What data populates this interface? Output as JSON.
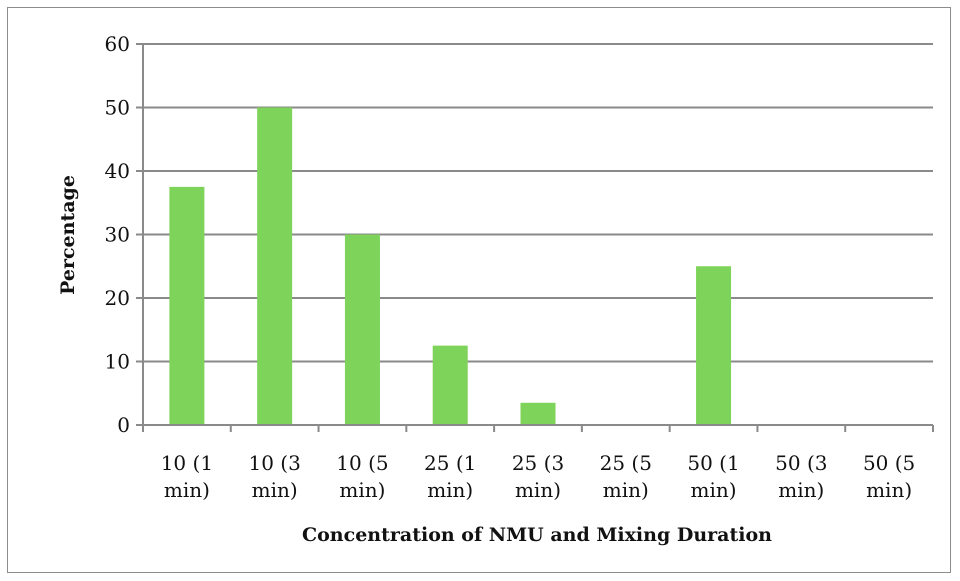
{
  "chart_data": {
    "type": "bar",
    "title": "",
    "xlabel": "Concentration of NMU and Mixing Duration",
    "ylabel": "Percentage",
    "categories": [
      [
        "10 (1",
        "min)"
      ],
      [
        "10 (3",
        "min)"
      ],
      [
        "10 (5",
        "min)"
      ],
      [
        "25 (1",
        "min)"
      ],
      [
        "25 (3",
        "min)"
      ],
      [
        "25 (5",
        "min)"
      ],
      [
        "50 (1",
        "min)"
      ],
      [
        "50 (3",
        "min)"
      ],
      [
        "50 (5",
        "min)"
      ]
    ],
    "values": [
      37.5,
      50,
      30,
      12.5,
      3.5,
      0,
      25,
      0,
      0
    ],
    "ylim": [
      0,
      60
    ],
    "yticks": [
      "0",
      "10",
      "20",
      "30",
      "40",
      "50",
      "60"
    ],
    "grid": true,
    "legend": "none",
    "bar_color": "#7ed35a",
    "grid_color": "#8a8a8a"
  }
}
